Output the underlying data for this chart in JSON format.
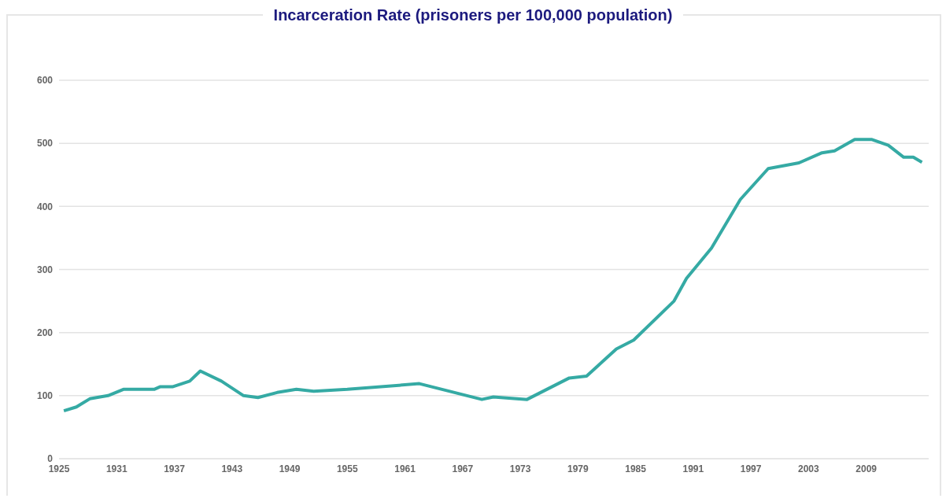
{
  "chart_data": {
    "type": "line",
    "title": "Incarceration Rate (prisoners per 100,000 population)",
    "x": [
      1925.5,
      1926.8,
      1928.2,
      1930.1,
      1931.7,
      1934.9,
      1935.5,
      1936.8,
      1938.6,
      1939.7,
      1941.9,
      1944.2,
      1945.7,
      1947.7,
      1949.7,
      1951.5,
      1955,
      1962.5,
      1969,
      1970.2,
      1973.7,
      1978.1,
      1979.9,
      1983,
      1984.8,
      1989,
      1990.3,
      1992.9,
      1995.9,
      1998.8,
      2002,
      2004.4,
      2005.7,
      2007.8,
      2009.6,
      2011.3,
      2012.9,
      2013.9,
      2014.8
    ],
    "series": [
      {
        "color": "#35aaa4",
        "values": [
          76,
          82,
          95,
          100,
          110,
          110,
          114,
          114,
          123,
          139,
          123,
          100,
          97,
          105,
          110,
          107,
          110,
          119,
          94,
          98,
          94,
          128,
          131,
          174,
          188,
          250,
          286,
          334,
          411,
          460,
          469,
          485,
          488,
          506,
          506,
          497,
          478,
          478,
          470
        ]
      }
    ],
    "xlim": [
      1925,
      2015.5
    ],
    "xticks": [
      1925,
      1931,
      1937,
      1943,
      1949,
      1955,
      1961,
      1967,
      1973,
      1979,
      1985,
      1991,
      1997,
      2003,
      2009
    ],
    "ylim": [
      0,
      600
    ],
    "yticks": [
      0,
      100,
      200,
      300,
      400,
      500,
      600
    ],
    "grid": "y",
    "legend": false,
    "marker": "none",
    "line_style": "solid"
  }
}
